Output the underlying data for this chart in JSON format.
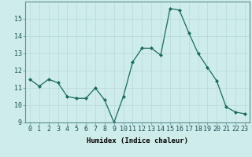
{
  "x": [
    0,
    1,
    2,
    3,
    4,
    5,
    6,
    7,
    8,
    9,
    10,
    11,
    12,
    13,
    14,
    15,
    16,
    17,
    18,
    19,
    20,
    21,
    22,
    23
  ],
  "y": [
    11.5,
    11.1,
    11.5,
    11.3,
    10.5,
    10.4,
    10.4,
    11.0,
    10.3,
    9.0,
    10.5,
    12.5,
    13.3,
    13.3,
    12.9,
    15.6,
    15.5,
    14.2,
    13.0,
    12.2,
    11.4,
    9.9,
    9.6,
    9.5
  ],
  "line_color": "#1a6b5a",
  "marker": "D",
  "marker_size": 2.0,
  "bg_color": "#ceecea",
  "grid_major_color": "#b8d8d6",
  "grid_minor_color": "#d4ecea",
  "xlabel": "Humidex (Indice chaleur)",
  "ylim": [
    9,
    16
  ],
  "xlim": [
    -0.5,
    23.5
  ],
  "yticks": [
    9,
    10,
    11,
    12,
    13,
    14,
    15
  ],
  "xticks": [
    0,
    1,
    2,
    3,
    4,
    5,
    6,
    7,
    8,
    9,
    10,
    11,
    12,
    13,
    14,
    15,
    16,
    17,
    18,
    19,
    20,
    21,
    22,
    23
  ],
  "label_fontsize": 6.5,
  "tick_fontsize": 6.0,
  "linewidth": 0.9
}
